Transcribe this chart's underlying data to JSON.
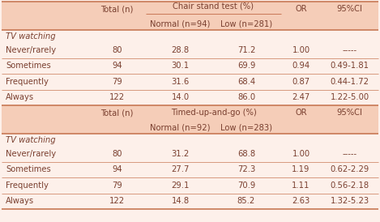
{
  "header1_label": "Chair stand test (%)",
  "header1_sub1": "Normal (n=94)",
  "header1_sub2": "Low (n=281)",
  "header2_label": "Timed-up-and-go (%)",
  "header2_sub1": "Normal (n=92)",
  "header2_sub2": "Low (n=283)",
  "total_n_label": "Total (n)",
  "or_label": "OR",
  "ci_label": "95%CI",
  "section_label": "TV watching",
  "rows1": [
    [
      "Never/rarely",
      "80",
      "28.8",
      "71.2",
      "1.00",
      "-----"
    ],
    [
      "Sometimes",
      "94",
      "30.1",
      "69.9",
      "0.94",
      "0.49-1.81"
    ],
    [
      "Frequently",
      "79",
      "31.6",
      "68.4",
      "0.87",
      "0.44-1.72"
    ],
    [
      "Always",
      "122",
      "14.0",
      "86.0",
      "2.47",
      "1.22-5.00"
    ]
  ],
  "rows2": [
    [
      "Never/rarely",
      "80",
      "31.2",
      "68.8",
      "1.00",
      "-----"
    ],
    [
      "Sometimes",
      "94",
      "27.7",
      "72.3",
      "1.19",
      "0.62-2.29"
    ],
    [
      "Frequently",
      "79",
      "29.1",
      "70.9",
      "1.11",
      "0.56-2.18"
    ],
    [
      "Always",
      "122",
      "14.8",
      "85.2",
      "2.63",
      "1.32-5.23"
    ]
  ],
  "header_bg": "#f5cdb8",
  "row_bg": "#fdf0ea",
  "text_color": "#7a4030",
  "border_color": "#c87855",
  "font_size": 7.2,
  "fig_w": 4.69,
  "fig_h": 2.74,
  "dpi": 100
}
